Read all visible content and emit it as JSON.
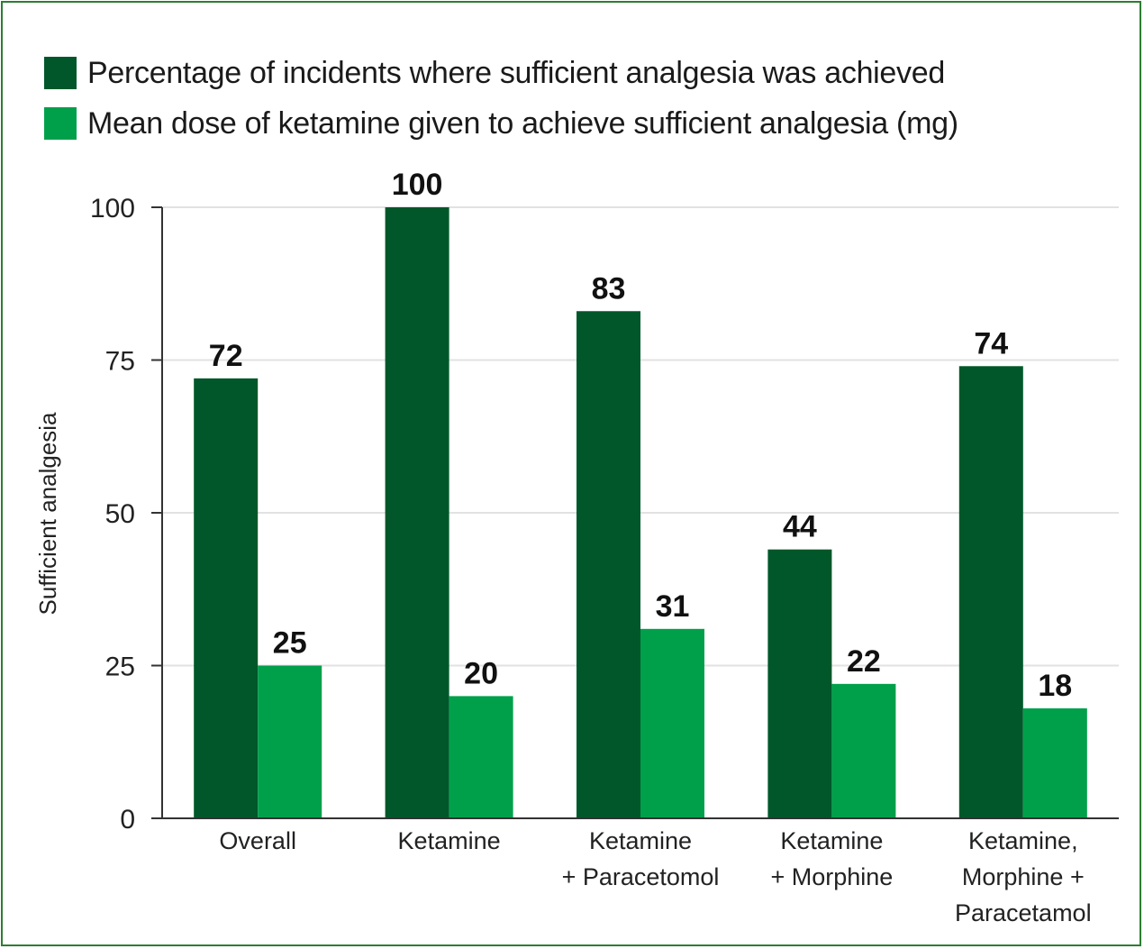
{
  "legend": [
    {
      "label": "Percentage of incidents where sufficient analgesia was achieved",
      "color": "#01572a"
    },
    {
      "label": "Mean dose of ketamine given to achieve sufficient analgesia (mg)",
      "color": "#00a04b"
    }
  ],
  "chart_data": {
    "type": "bar",
    "categories": [
      [
        "Overall"
      ],
      [
        "Ketamine"
      ],
      [
        "Ketamine",
        "+ Paracetomol"
      ],
      [
        "Ketamine",
        "+ Morphine"
      ],
      [
        "Ketamine,",
        "Morphine +",
        "Paracetamol"
      ]
    ],
    "series": [
      {
        "name": "Percentage of incidents where sufficient analgesia was achieved",
        "values": [
          72,
          100,
          83,
          44,
          74
        ],
        "color": "#01572a"
      },
      {
        "name": "Mean dose of ketamine given to achieve sufficient analgesia (mg)",
        "values": [
          25,
          20,
          31,
          22,
          18
        ],
        "color": "#00a04b"
      }
    ],
    "ylabel": "Sufficient analgesia",
    "xlabel": "",
    "ylim": [
      0,
      100
    ],
    "yticks": [
      0,
      25,
      50,
      75,
      100
    ],
    "grid": true,
    "legend_position": "top-left"
  }
}
